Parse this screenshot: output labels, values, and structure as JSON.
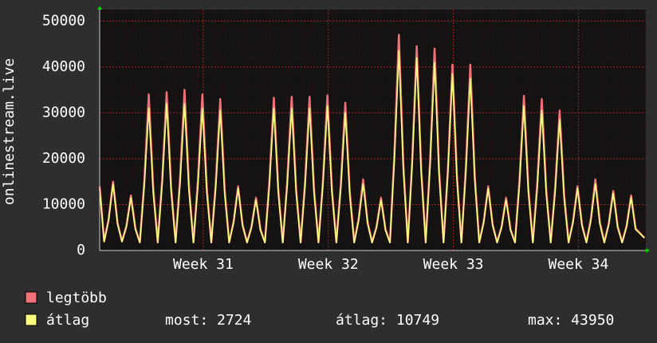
{
  "chart_data": {
    "type": "line",
    "ylabel": "onlinestream.live",
    "x": [
      0,
      1,
      2,
      3,
      4,
      5,
      6,
      7,
      8,
      9,
      10,
      11,
      12,
      13,
      14,
      15,
      16,
      17,
      18,
      19,
      20,
      21,
      22,
      23,
      24,
      25,
      26,
      27,
      28,
      29,
      30,
      31,
      32,
      33,
      34,
      35,
      36,
      37,
      38,
      39,
      40,
      41,
      42,
      43,
      44,
      45,
      46,
      47,
      48,
      49,
      50,
      51,
      52,
      53,
      54,
      55,
      56,
      57,
      58,
      59,
      60,
      61,
      62,
      63,
      64,
      65,
      66,
      67,
      68,
      69,
      70,
      71,
      72,
      73,
      74,
      75,
      76,
      77,
      78,
      79,
      80,
      81,
      82,
      83,
      84,
      85,
      86,
      87,
      88,
      89,
      90,
      91,
      92,
      93,
      94,
      95,
      96,
      97,
      98,
      99,
      100,
      101,
      102,
      103,
      104,
      105,
      106,
      107,
      108,
      109,
      110,
      111,
      112,
      113,
      114,
      115,
      116,
      117,
      118,
      119,
      120,
      122
    ],
    "xlim": [
      0,
      122.3
    ],
    "xticks": [
      {
        "value": 23.2,
        "label": "Week 31"
      },
      {
        "value": 51.2,
        "label": "Week 32"
      },
      {
        "value": 79.2,
        "label": "Week 33"
      },
      {
        "value": 107.2,
        "label": "Week 34"
      }
    ],
    "ylim": [
      0,
      52500
    ],
    "yticks": [
      0,
      10000,
      20000,
      30000,
      40000,
      50000
    ],
    "grid": true,
    "series": [
      {
        "name": "legtöbb",
        "color": "#f07078",
        "values": [
          14000,
          2000,
          6800,
          15000,
          6000,
          2000,
          5400,
          12000,
          4800,
          1800,
          15300,
          34000,
          13600,
          1800,
          15500,
          34500,
          13800,
          1800,
          15800,
          35000,
          14000,
          1800,
          15300,
          34000,
          13600,
          1800,
          14900,
          33000,
          13200,
          1800,
          6300,
          14000,
          5600,
          1800,
          5200,
          11500,
          4600,
          1800,
          15000,
          33300,
          13300,
          1800,
          15100,
          33500,
          13400,
          1800,
          15100,
          33500,
          13400,
          1800,
          15200,
          33800,
          13500,
          1800,
          14500,
          32200,
          12900,
          1800,
          7000,
          15500,
          6200,
          1800,
          5200,
          11500,
          4600,
          1800,
          21200,
          47000,
          18800,
          1800,
          20000,
          44500,
          17800,
          1800,
          19800,
          44000,
          17600,
          1800,
          18200,
          40500,
          16200,
          1800,
          18200,
          40500,
          16200,
          1800,
          6300,
          14000,
          5600,
          1800,
          5200,
          11500,
          4600,
          1800,
          15200,
          33700,
          13500,
          1800,
          14900,
          33000,
          13200,
          1800,
          13700,
          30500,
          12200,
          1800,
          6300,
          14000,
          5600,
          1800,
          7000,
          15500,
          6200,
          1800,
          5900,
          13000,
          5200,
          1800,
          5400,
          12000,
          4800,
          2724
        ]
      },
      {
        "name": "átlag",
        "color": "#ffff80",
        "values": [
          13500,
          1900,
          6500,
          14500,
          5800,
          1900,
          5200,
          11500,
          4600,
          1700,
          14000,
          31000,
          12400,
          1700,
          14400,
          32000,
          12800,
          1700,
          14400,
          32000,
          12800,
          1700,
          14000,
          31000,
          12400,
          1700,
          13700,
          30500,
          12200,
          1700,
          6100,
          13500,
          5400,
          1700,
          5000,
          11000,
          4400,
          1700,
          14000,
          31000,
          12400,
          1700,
          14000,
          31000,
          12400,
          1700,
          14000,
          31000,
          12400,
          1700,
          14200,
          31500,
          12600,
          1700,
          13500,
          30000,
          12000,
          1700,
          6500,
          14500,
          5800,
          1700,
          5000,
          11000,
          4400,
          1700,
          19600,
          43500,
          17400,
          1700,
          18900,
          42000,
          16800,
          1700,
          18500,
          41000,
          16400,
          1700,
          17300,
          38500,
          15400,
          1700,
          16900,
          37500,
          15000,
          1700,
          6100,
          13500,
          5400,
          1700,
          5000,
          11000,
          4400,
          1700,
          14200,
          31500,
          12600,
          1700,
          13700,
          30500,
          12200,
          1700,
          12800,
          28500,
          11400,
          1700,
          6100,
          13500,
          5400,
          1700,
          6500,
          14500,
          5800,
          1700,
          5600,
          12500,
          5000,
          1700,
          5200,
          11500,
          4600,
          2724
        ]
      }
    ],
    "stats": [
      "most: 2724",
      "átlag: 10749",
      "max: 43950"
    ]
  }
}
